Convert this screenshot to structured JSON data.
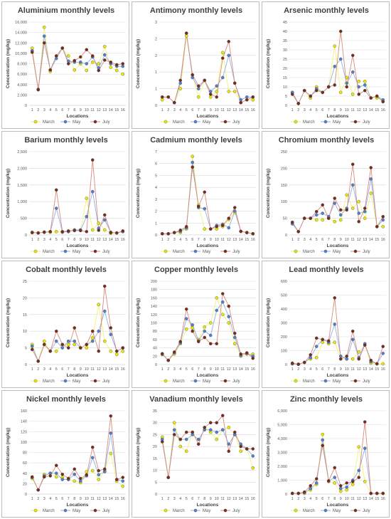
{
  "colors": {
    "March": "#e8e800",
    "May": "#4f7fd0",
    "July": "#7a2a1a",
    "march_line": "#f2f27a",
    "may_line": "#8fb0e8",
    "july_line": "#d98b7e",
    "grid": "#d9d9d9",
    "border": "#bdbdbd"
  },
  "chart_data": [
    {
      "type": "line",
      "title": "Aluminium monthly levels",
      "xlabel": "Locations",
      "ylabel": "Concentration (mg/kg)",
      "ylim": [
        0,
        16000
      ],
      "yticks": [
        "0",
        "2,000",
        "4,000",
        "6,000",
        "8,000",
        "10,000",
        "12,000",
        "14,000",
        "16,000"
      ],
      "categories": [
        "1",
        "2",
        "3",
        "4",
        "5",
        "6",
        "7",
        "8",
        "9",
        "10",
        "11",
        "12",
        "13",
        "14",
        "15",
        "16"
      ],
      "series": [
        {
          "name": "March",
          "values": [
            11000,
            3000,
            15000,
            6500,
            9500,
            11000,
            9500,
            6800,
            8000,
            6700,
            8300,
            8000,
            11300,
            7300,
            6700,
            6000
          ]
        },
        {
          "name": "May",
          "values": [
            10500,
            3100,
            13300,
            6800,
            9000,
            11000,
            8500,
            8300,
            8300,
            8000,
            9300,
            7200,
            9700,
            8000,
            7500,
            7500
          ]
        },
        {
          "name": "July",
          "values": [
            10200,
            3000,
            12000,
            6800,
            9500,
            11000,
            8000,
            8600,
            9300,
            10700,
            9500,
            6700,
            8700,
            8300,
            7800,
            8000
          ]
        }
      ]
    },
    {
      "type": "line",
      "title": "Antimony monthly levels",
      "xlabel": "Locations",
      "ylabel": "Concentration (mg/kg)",
      "ylim": [
        0,
        3
      ],
      "yticks": [
        "0",
        "1",
        "1",
        "2",
        "2",
        "3"
      ],
      "categories": [
        "1",
        "2",
        "3",
        "4",
        "5",
        "6",
        "7",
        "8",
        "9",
        "10",
        "11",
        "12",
        "13",
        "14",
        "15",
        "16"
      ],
      "series": [
        {
          "name": "March",
          "values": [
            0.2,
            0.3,
            0.1,
            0.6,
            2.5,
            1.1,
            0.3,
            0.9,
            0.3,
            0.5,
            1.9,
            0.5,
            0.5,
            0.1,
            0.2,
            0.2
          ]
        },
        {
          "name": "May",
          "values": [
            0.3,
            0.3,
            0.1,
            0.8,
            2.6,
            1.0,
            0.6,
            0.9,
            0.5,
            0.7,
            1.0,
            1.8,
            0.8,
            0.2,
            0.3,
            0.3
          ]
        },
        {
          "name": "July",
          "values": [
            0.3,
            0.3,
            0.1,
            0.9,
            2.6,
            1.1,
            0.7,
            0.9,
            0.4,
            0.3,
            1.7,
            2.3,
            0.8,
            0.1,
            0.2,
            0.3
          ]
        }
      ]
    },
    {
      "type": "line",
      "title": "Arsenic monthly levels",
      "xlabel": "Locations",
      "ylabel": "Concentration (mg/kg)",
      "ylim": [
        0,
        45
      ],
      "yticks": [
        "0",
        "5",
        "10",
        "15",
        "20",
        "25",
        "30",
        "35",
        "40",
        "45"
      ],
      "categories": [
        "1",
        "2",
        "3",
        "4",
        "5",
        "6",
        "7",
        "8",
        "9",
        "10",
        "11",
        "12",
        "13",
        "14",
        "15",
        "16"
      ],
      "series": [
        {
          "name": "March",
          "values": [
            7,
            1,
            8,
            4,
            10,
            7,
            10,
            32,
            7,
            15,
            6,
            13,
            13,
            4,
            4,
            2
          ]
        },
        {
          "name": "May",
          "values": [
            7,
            1,
            8,
            5,
            9,
            7,
            10,
            21,
            25,
            12,
            18,
            10,
            11,
            4,
            5,
            3
          ]
        },
        {
          "name": "July",
          "values": [
            6,
            1,
            8,
            5,
            8,
            7,
            10,
            11,
            40,
            10,
            27,
            6,
            8,
            4,
            5,
            2
          ]
        }
      ]
    },
    {
      "type": "line",
      "title": "Barium monthly levels",
      "xlabel": "Locations",
      "ylabel": "Concentration (mg/kg)",
      "ylim": [
        0,
        2500
      ],
      "yticks": [
        "0",
        "500",
        "1,000",
        "1,500",
        "2,000",
        "2,500"
      ],
      "categories": [
        "1",
        "2",
        "3",
        "4",
        "5",
        "6",
        "7",
        "8",
        "9",
        "10",
        "11",
        "12",
        "13",
        "14",
        "15",
        "16"
      ],
      "series": [
        {
          "name": "March",
          "values": [
            80,
            60,
            90,
            80,
            100,
            80,
            100,
            150,
            150,
            1100,
            150,
            350,
            150,
            50,
            60,
            100
          ]
        },
        {
          "name": "May",
          "values": [
            70,
            60,
            80,
            100,
            800,
            90,
            100,
            150,
            150,
            550,
            1300,
            200,
            450,
            80,
            60,
            100
          ]
        },
        {
          "name": "July",
          "values": [
            70,
            60,
            80,
            100,
            1350,
            100,
            120,
            130,
            130,
            100,
            2250,
            140,
            600,
            70,
            60,
            120
          ]
        }
      ]
    },
    {
      "type": "line",
      "title": "Cadmium monthly levels",
      "xlabel": "Locations",
      "ylabel": "Concentration (mg/kg)",
      "ylim": [
        0,
        7
      ],
      "yticks": [
        "0",
        "1",
        "2",
        "3",
        "4",
        "5",
        "6",
        "7"
      ],
      "categories": [
        "1",
        "2",
        "3",
        "4",
        "5",
        "6",
        "7",
        "8",
        "9",
        "10",
        "11",
        "12",
        "13",
        "14",
        "15",
        "16"
      ],
      "series": [
        {
          "name": "March",
          "values": [
            0.1,
            0.1,
            0.2,
            0.2,
            0.5,
            6.6,
            2.5,
            0.5,
            0.5,
            0.5,
            0.7,
            1.3,
            1.9,
            0.3,
            0.2,
            0.1
          ]
        },
        {
          "name": "May",
          "values": [
            0.1,
            0.1,
            0.2,
            0.3,
            0.6,
            6.1,
            2.3,
            2.2,
            0.5,
            0.8,
            0.9,
            0.6,
            2.0,
            0.3,
            0.2,
            0.1
          ]
        },
        {
          "name": "July",
          "values": [
            0.1,
            0.1,
            0.2,
            0.4,
            0.7,
            5.7,
            2.4,
            3.6,
            0.5,
            0.7,
            0.8,
            1.4,
            2.3,
            0.3,
            0.2,
            0.1
          ]
        }
      ]
    },
    {
      "type": "line",
      "title": "Chromium monthly levels",
      "xlabel": "Locations",
      "ylabel": "Concentration (mg/kg)",
      "ylim": [
        0,
        250
      ],
      "yticks": [
        "0",
        "50",
        "100",
        "150",
        "200",
        "250"
      ],
      "categories": [
        "1",
        "2",
        "3",
        "4",
        "5",
        "6",
        "7",
        "8",
        "9",
        "10",
        "11",
        "12",
        "13",
        "14",
        "15",
        "16"
      ],
      "series": [
        {
          "name": "March",
          "values": [
            35,
            10,
            50,
            50,
            45,
            45,
            50,
            40,
            45,
            120,
            80,
            100,
            50,
            125,
            25,
            25
          ]
        },
        {
          "name": "May",
          "values": [
            33,
            10,
            50,
            50,
            60,
            65,
            55,
            95,
            60,
            80,
            150,
            65,
            70,
            168,
            25,
            45
          ]
        },
        {
          "name": "July",
          "values": [
            38,
            10,
            50,
            50,
            70,
            90,
            50,
            110,
            75,
            75,
            212,
            40,
            80,
            202,
            25,
            55
          ]
        }
      ]
    },
    {
      "type": "line",
      "title": "Cobalt monthly levels",
      "xlabel": "Locations",
      "ylabel": "Concentration (mg/kg)",
      "ylim": [
        0,
        25
      ],
      "yticks": [
        "0",
        "5",
        "10",
        "15",
        "20",
        "25"
      ],
      "categories": [
        "1",
        "2",
        "3",
        "4",
        "5",
        "6",
        "7",
        "8",
        "9",
        "10",
        "11",
        "12",
        "13",
        "14",
        "15",
        "16"
      ],
      "series": [
        {
          "name": "March",
          "values": [
            6,
            1,
            7,
            4,
            4,
            6,
            6,
            6,
            5,
            5,
            8,
            18,
            7,
            4,
            3,
            4
          ]
        },
        {
          "name": "May",
          "values": [
            5.5,
            1,
            6,
            4,
            7,
            5,
            7,
            7,
            5,
            6,
            7,
            10,
            16,
            9,
            4,
            5
          ]
        },
        {
          "name": "July",
          "values": [
            4.5,
            1,
            6,
            4,
            10,
            6,
            5,
            11,
            5,
            6,
            10,
            4,
            23.5,
            11,
            4,
            5
          ]
        }
      ]
    },
    {
      "type": "line",
      "title": "Copper monthly levels",
      "xlabel": "Locations",
      "ylabel": "Concentration (mg/kg)",
      "ylim": [
        0,
        200
      ],
      "yticks": [
        "0",
        "20",
        "40",
        "60",
        "80",
        "100",
        "120",
        "140",
        "160",
        "180",
        "200"
      ],
      "categories": [
        "1",
        "2",
        "3",
        "4",
        "5",
        "6",
        "7",
        "8",
        "9",
        "10",
        "11",
        "12",
        "13",
        "14",
        "15",
        "16"
      ],
      "series": [
        {
          "name": "March",
          "values": [
            24,
            10,
            25,
            50,
            85,
            88,
            60,
            90,
            100,
            160,
            120,
            100,
            50,
            20,
            25,
            25
          ]
        },
        {
          "name": "May",
          "values": [
            25,
            10,
            28,
            52,
            110,
            95,
            57,
            80,
            70,
            130,
            150,
            115,
            65,
            22,
            27,
            20
          ]
        },
        {
          "name": "July",
          "values": [
            26,
            10,
            30,
            55,
            133,
            80,
            55,
            65,
            50,
            50,
            170,
            140,
            75,
            25,
            28,
            15
          ]
        }
      ]
    },
    {
      "type": "line",
      "title": "Lead monthly levels",
      "xlabel": "Locations",
      "ylabel": "Concentration (mg/kg)",
      "ylim": [
        0,
        600
      ],
      "yticks": [
        "0",
        "100",
        "200",
        "300",
        "400",
        "500",
        "600"
      ],
      "categories": [
        "1",
        "2",
        "3",
        "4",
        "5",
        "6",
        "7",
        "8",
        "9",
        "10",
        "11",
        "12",
        "13",
        "14",
        "15",
        "16"
      ],
      "series": [
        {
          "name": "March",
          "values": [
            5,
            2,
            15,
            40,
            50,
            160,
            150,
            160,
            40,
            40,
            40,
            90,
            140,
            10,
            5,
            5
          ]
        },
        {
          "name": "May",
          "values": [
            5,
            2,
            15,
            50,
            130,
            180,
            160,
            290,
            60,
            40,
            180,
            50,
            150,
            20,
            5,
            80
          ]
        },
        {
          "name": "July",
          "values": [
            10,
            2,
            15,
            70,
            190,
            180,
            170,
            480,
            40,
            60,
            240,
            40,
            140,
            30,
            5,
            130
          ]
        }
      ]
    },
    {
      "type": "line",
      "title": "Nickel monthly levels",
      "xlabel": "Locations",
      "ylabel": "Concentration (mg/kg)",
      "ylim": [
        0,
        160
      ],
      "yticks": [
        "0",
        "20",
        "40",
        "60",
        "80",
        "100",
        "120",
        "140",
        "160"
      ],
      "categories": [
        "1",
        "2",
        "3",
        "4",
        "5",
        "6",
        "7",
        "8",
        "9",
        "10",
        "11",
        "12",
        "13",
        "14",
        "15",
        "16"
      ],
      "series": [
        {
          "name": "March",
          "values": [
            30,
            8,
            38,
            40,
            33,
            32,
            28,
            25,
            22,
            43,
            45,
            28,
            45,
            78,
            25,
            15
          ]
        },
        {
          "name": "May",
          "values": [
            32,
            8,
            35,
            40,
            40,
            28,
            28,
            38,
            25,
            35,
            70,
            37,
            43,
            117,
            28,
            25
          ]
        },
        {
          "name": "July",
          "values": [
            33,
            8,
            33,
            35,
            55,
            38,
            30,
            48,
            30,
            37,
            90,
            45,
            48,
            150,
            28,
            32
          ]
        }
      ]
    },
    {
      "type": "line",
      "title": "Vanadium monthly levels",
      "xlabel": "Locations",
      "ylabel": "Concentration (mg/kg)",
      "ylim": [
        0,
        35
      ],
      "yticks": [
        "0",
        "5",
        "10",
        "15",
        "20",
        "25",
        "30",
        "35"
      ],
      "categories": [
        "1",
        "2",
        "3",
        "4",
        "5",
        "6",
        "7",
        "8",
        "9",
        "10",
        "11",
        "12",
        "13",
        "14",
        "15",
        "16"
      ],
      "series": [
        {
          "name": "March",
          "values": [
            24,
            7,
            30,
            20,
            18,
            26,
            21,
            28,
            26,
            23,
            27,
            28,
            25,
            18,
            19,
            11
          ]
        },
        {
          "name": "May",
          "values": [
            23,
            7,
            27,
            23,
            23,
            25,
            23,
            27,
            27,
            26,
            27,
            21,
            25,
            21,
            19,
            16
          ]
        },
        {
          "name": "July",
          "values": [
            22,
            7,
            25,
            23,
            26,
            26,
            21,
            28,
            30,
            30,
            33,
            18,
            26,
            20,
            19,
            19
          ]
        }
      ]
    },
    {
      "type": "line",
      "title": "Zinc monthly levels",
      "xlabel": "Locations",
      "ylabel": "Concentration (mg/kg)",
      "ylim": [
        0,
        6000
      ],
      "yticks": [
        "0",
        "1,000",
        "2,000",
        "3,000",
        "4,000",
        "5,000",
        "6,000"
      ],
      "categories": [
        "1",
        "2",
        "3",
        "4",
        "5",
        "6",
        "7",
        "8",
        "9",
        "10",
        "11",
        "12",
        "13",
        "14",
        "15",
        "16"
      ],
      "series": [
        {
          "name": "March",
          "values": [
            50,
            50,
            50,
            300,
            700,
            4300,
            900,
            800,
            200,
            300,
            700,
            3400,
            900,
            50,
            50,
            50
          ]
        },
        {
          "name": "May",
          "values": [
            50,
            50,
            100,
            400,
            800,
            3900,
            950,
            1200,
            400,
            500,
            1000,
            1700,
            3300,
            50,
            50,
            50
          ]
        },
        {
          "name": "July",
          "values": [
            50,
            50,
            150,
            600,
            1100,
            3500,
            950,
            1900,
            600,
            800,
            900,
            1200,
            5200,
            50,
            50,
            50
          ]
        }
      ]
    }
  ]
}
